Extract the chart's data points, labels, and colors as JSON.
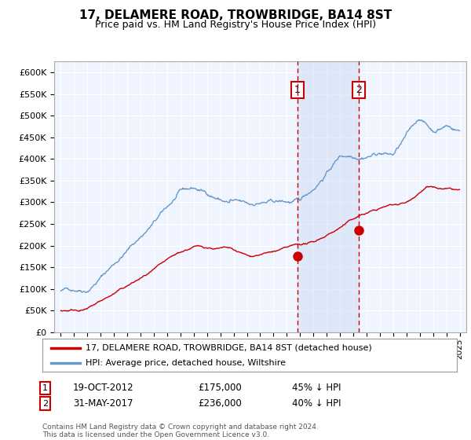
{
  "title": "17, DELAMERE ROAD, TROWBRIDGE, BA14 8ST",
  "subtitle": "Price paid vs. HM Land Registry's House Price Index (HPI)",
  "legend_line1": "17, DELAMERE ROAD, TROWBRIDGE, BA14 8ST (detached house)",
  "legend_line2": "HPI: Average price, detached house, Wiltshire",
  "footnote": "Contains HM Land Registry data © Crown copyright and database right 2024.\nThis data is licensed under the Open Government Licence v3.0.",
  "sale1_date": "19-OCT-2012",
  "sale1_price": 175000,
  "sale1_label": "45% ↓ HPI",
  "sale2_date": "31-MAY-2017",
  "sale2_price": 236000,
  "sale2_label": "40% ↓ HPI",
  "sale1_x": 2012.8,
  "sale2_x": 2017.4,
  "ylim": [
    0,
    625000
  ],
  "xlim": [
    1994.5,
    2025.5
  ],
  "plot_bg_color": "#f0f4ff",
  "grid_color": "#ffffff",
  "hpi_line_color": "#6699cc",
  "property_line_color": "#cc0000",
  "shade_color": "#c8d8f0",
  "vline_color": "#cc0000",
  "title_fontsize": 11,
  "subtitle_fontsize": 9,
  "tick_fontsize": 8,
  "legend_fontsize": 8.5
}
